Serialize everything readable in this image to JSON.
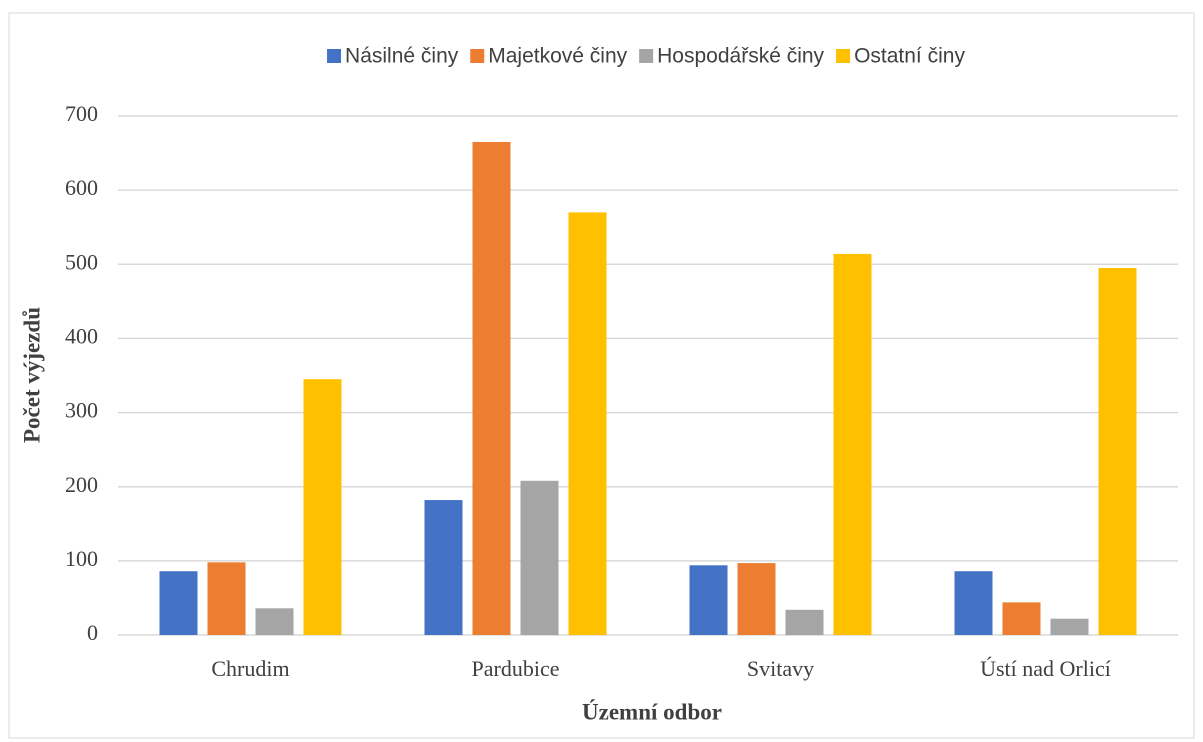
{
  "chart_data": {
    "type": "bar",
    "x_label": "Územní odbor",
    "y_label": "Počet výjezdů",
    "categories": [
      "Chrudim",
      "Pardubice",
      "Svitavy",
      "Ústí nad Orlicí"
    ],
    "series": [
      {
        "name": "Násilné činy",
        "color": "#4472c4",
        "values": [
          86,
          182,
          94,
          86
        ]
      },
      {
        "name": "Majetkové činy",
        "color": "#ed7d31",
        "values": [
          98,
          665,
          97,
          44
        ]
      },
      {
        "name": "Hospodářské činy",
        "color": "#a5a5a5",
        "values": [
          36,
          208,
          34,
          22
        ]
      },
      {
        "name": "Ostatní činy",
        "color": "#ffc000",
        "values": [
          345,
          570,
          514,
          495
        ]
      }
    ],
    "ylim": [
      0,
      700
    ],
    "yticks": [
      0,
      100,
      200,
      300,
      400,
      500,
      600,
      700
    ],
    "grid": true,
    "legend": "top"
  }
}
